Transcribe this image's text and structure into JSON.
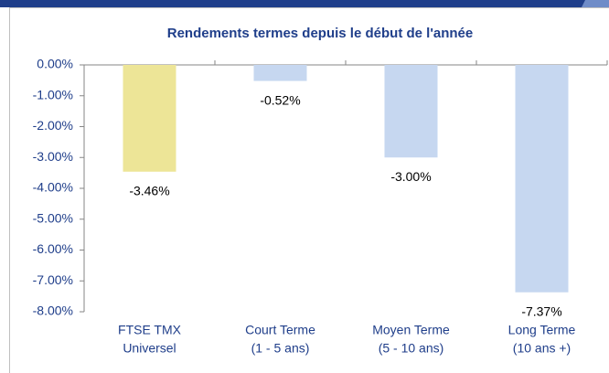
{
  "chart_data": {
    "type": "bar",
    "title": "Rendements termes depuis le début de l'année",
    "categories": [
      [
        "FTSE TMX",
        "Universel"
      ],
      [
        "Court Terme",
        "(1 - 5 ans)"
      ],
      [
        "Moyen Terme",
        "(5 - 10 ans)"
      ],
      [
        "Long Terme",
        "(10 ans +)"
      ]
    ],
    "values": [
      -3.46,
      -0.52,
      -3.0,
      -7.37
    ],
    "value_labels": [
      "-3.46%",
      "-0.52%",
      "-3.00%",
      "-7.37%"
    ],
    "colors": [
      "#ede597",
      "#c6d7f0",
      "#c6d7f0",
      "#c6d7f0"
    ],
    "ylim": [
      -8,
      0
    ],
    "yticks": [
      {
        "value": 0,
        "label": "0.00%"
      },
      {
        "value": -1,
        "label": "-1.00%"
      },
      {
        "value": -2,
        "label": "-2.00%"
      },
      {
        "value": -3,
        "label": "-3.00%"
      },
      {
        "value": -4,
        "label": "-4.00%"
      },
      {
        "value": -5,
        "label": "-5.00%"
      },
      {
        "value": -6,
        "label": "-6.00%"
      },
      {
        "value": -7,
        "label": "-7.00%"
      },
      {
        "value": -8,
        "label": "-8.00%"
      }
    ],
    "grid": false
  }
}
